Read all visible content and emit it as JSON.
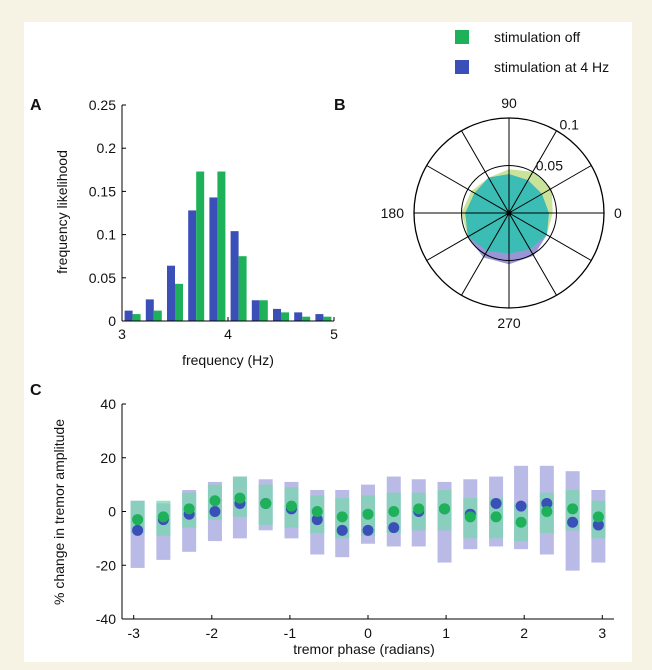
{
  "colors": {
    "stim_off": "#1fb15a",
    "stim_4hz": "#3a4fb8",
    "band_off": "#79d6b0",
    "band_4hz": "#b3b3e3",
    "polar_off": "#c9e39a",
    "polar_4hz": "#9a96d6",
    "polar_overlap": "#3bbcb4"
  },
  "legend": {
    "items": [
      {
        "label": "stimulation off",
        "color": "#1fb15a"
      },
      {
        "label": "stimulation at 4 Hz",
        "color": "#3a4fb8"
      }
    ]
  },
  "panels": {
    "a": "A",
    "b": "B",
    "c": "C"
  },
  "chart_data": [
    {
      "type": "bar",
      "panel": "A",
      "xlabel": "frequency (Hz)",
      "ylabel": "frequency likelihood",
      "xlim": [
        3,
        5
      ],
      "ylim": [
        0,
        0.25
      ],
      "xticks": [
        "3",
        "4",
        "5"
      ],
      "yticks": [
        "0",
        "0.05",
        "0.1",
        "0.15",
        "0.2",
        "0.25"
      ],
      "categories": [
        3.1,
        3.3,
        3.5,
        3.7,
        3.9,
        4.1,
        4.3,
        4.5,
        4.7,
        4.9
      ],
      "series": [
        {
          "name": "stimulation at 4 Hz",
          "values": [
            0.012,
            0.025,
            0.064,
            0.128,
            0.143,
            0.104,
            0.024,
            0.014,
            0.01,
            0.008
          ]
        },
        {
          "name": "stimulation off",
          "values": [
            0.008,
            0.012,
            0.043,
            0.173,
            0.173,
            0.075,
            0.024,
            0.01,
            0.005,
            0.005
          ]
        }
      ]
    },
    {
      "type": "polar",
      "panel": "B",
      "angle_labels": [
        "90",
        "180",
        "270",
        "0"
      ],
      "radial_ticks": [
        "0.05",
        "0.1"
      ],
      "rmax": 0.1,
      "angles_deg": [
        0,
        30,
        60,
        90,
        120,
        150,
        180,
        210,
        240,
        270,
        300,
        330
      ],
      "series": [
        {
          "name": "stimulation off",
          "radii": [
            0.046,
            0.052,
            0.05,
            0.046,
            0.043,
            0.046,
            0.05,
            0.05,
            0.046,
            0.043,
            0.044,
            0.046
          ]
        },
        {
          "name": "stimulation at 4 Hz",
          "radii": [
            0.042,
            0.04,
            0.04,
            0.041,
            0.043,
            0.042,
            0.046,
            0.05,
            0.054,
            0.054,
            0.052,
            0.046
          ]
        }
      ]
    },
    {
      "type": "scatter",
      "panel": "C",
      "xlabel": "tremor phase (radians)",
      "ylabel": "% change in tremor amplitude",
      "xlim": [
        -3.15,
        3.15
      ],
      "ylim": [
        -40,
        40
      ],
      "xticks": [
        "-3",
        "-2",
        "-1",
        "0",
        "1",
        "2",
        "3"
      ],
      "yticks": [
        "-40",
        "-20",
        "0",
        "20",
        "40"
      ],
      "x": [
        -2.95,
        -2.62,
        -2.29,
        -1.96,
        -1.64,
        -1.31,
        -0.98,
        -0.65,
        -0.33,
        0.0,
        0.33,
        0.65,
        0.98,
        1.31,
        1.64,
        1.96,
        2.29,
        2.62,
        2.95
      ],
      "series": [
        {
          "name": "stimulation off",
          "values": [
            -3,
            -2,
            1,
            4,
            5,
            3,
            2,
            0,
            -2,
            -1,
            0,
            1,
            1,
            -2,
            -2,
            -4,
            0,
            1,
            -2
          ],
          "lower": [
            -8,
            -9,
            -6,
            -3,
            -2,
            -5,
            -6,
            -8,
            -10,
            -9,
            -8,
            -7,
            -7,
            -10,
            -10,
            -11,
            -8,
            -7,
            -10
          ],
          "upper": [
            4,
            4,
            7,
            10,
            13,
            10,
            9,
            6,
            5,
            6,
            7,
            7,
            8,
            5,
            5,
            3,
            7,
            8,
            4
          ]
        },
        {
          "name": "stimulation at 4 Hz",
          "values": [
            -7,
            -3,
            -1,
            0,
            3,
            3,
            1,
            -3,
            -7,
            -7,
            -6,
            0,
            1,
            -1,
            3,
            2,
            3,
            -4,
            -5
          ],
          "lower": [
            -21,
            -18,
            -15,
            -11,
            -10,
            -7,
            -10,
            -16,
            -17,
            -12,
            -13,
            -13,
            -19,
            -14,
            -13,
            -14,
            -16,
            -22,
            -19
          ],
          "upper": [
            4,
            3,
            8,
            11,
            13,
            12,
            11,
            8,
            8,
            10,
            13,
            12,
            11,
            12,
            13,
            17,
            17,
            15,
            8
          ]
        }
      ]
    }
  ]
}
